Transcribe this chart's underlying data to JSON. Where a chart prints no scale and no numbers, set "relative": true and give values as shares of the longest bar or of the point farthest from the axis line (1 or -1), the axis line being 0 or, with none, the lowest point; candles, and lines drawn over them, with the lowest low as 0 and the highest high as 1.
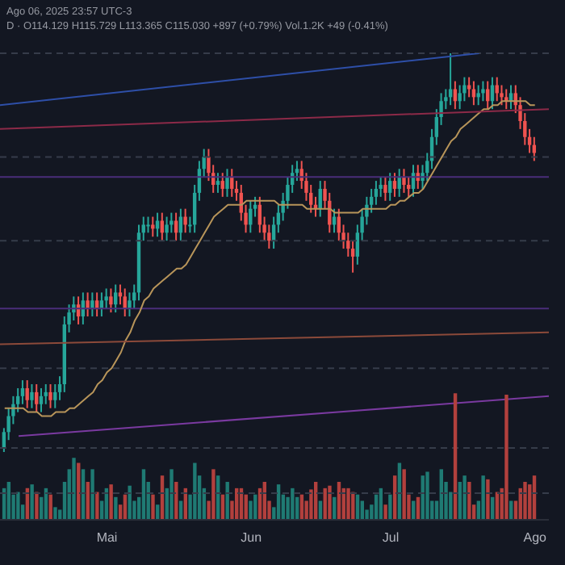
{
  "chart_data": [
    {
      "type": "candlestick",
      "relative": true,
      "tick_labels": false,
      "annotations": [
        "Ago 06, 2025 23:57 UTC-3",
        "D · O114.129 H115.729 L113.365 C115.030 +897 (+0.79%) Vol.1.2K +49 (-0.41%)"
      ],
      "xlim": [
        "2025-04-08",
        "2025-08-04"
      ],
      "x": [
        "2025-04-09",
        "2025-04-10",
        "2025-04-11",
        "2025-04-12",
        "2025-04-13",
        "2025-04-14",
        "2025-04-15",
        "2025-04-16",
        "2025-04-17",
        "2025-04-18",
        "2025-04-19",
        "2025-04-20",
        "2025-04-21",
        "2025-04-22",
        "2025-04-23",
        "2025-04-24",
        "2025-04-25",
        "2025-04-26",
        "2025-04-27",
        "2025-04-28",
        "2025-04-29",
        "2025-04-30",
        "2025-05-01",
        "2025-05-02",
        "2025-05-03",
        "2025-05-04",
        "2025-05-05",
        "2025-05-06",
        "2025-05-07",
        "2025-05-08",
        "2025-05-09",
        "2025-05-10",
        "2025-05-11",
        "2025-05-12",
        "2025-05-13",
        "2025-05-14",
        "2025-05-15",
        "2025-05-16",
        "2025-05-17",
        "2025-05-18",
        "2025-05-19",
        "2025-05-20",
        "2025-05-21",
        "2025-05-22",
        "2025-05-23",
        "2025-05-24",
        "2025-05-25",
        "2025-05-26",
        "2025-05-27",
        "2025-05-28",
        "2025-05-29",
        "2025-05-30",
        "2025-05-31",
        "2025-06-01",
        "2025-06-02",
        "2025-06-03",
        "2025-06-04",
        "2025-06-05",
        "2025-06-06",
        "2025-06-07",
        "2025-06-08",
        "2025-06-09",
        "2025-06-10",
        "2025-06-11",
        "2025-06-12",
        "2025-06-13",
        "2025-06-14",
        "2025-06-15",
        "2025-06-16",
        "2025-06-17",
        "2025-06-18",
        "2025-06-19",
        "2025-06-20",
        "2025-06-21",
        "2025-06-22",
        "2025-06-23",
        "2025-06-24",
        "2025-06-25",
        "2025-06-26",
        "2025-06-27",
        "2025-06-28",
        "2025-06-29",
        "2025-06-30",
        "2025-07-01",
        "2025-07-02",
        "2025-07-03",
        "2025-07-04",
        "2025-07-05",
        "2025-07-06",
        "2025-07-07",
        "2025-07-08",
        "2025-07-09",
        "2025-07-10",
        "2025-07-11",
        "2025-07-12",
        "2025-07-13",
        "2025-07-14",
        "2025-07-15",
        "2025-07-16",
        "2025-07-17",
        "2025-07-18",
        "2025-07-19",
        "2025-07-20",
        "2025-07-21",
        "2025-07-22",
        "2025-07-23",
        "2025-07-24",
        "2025-07-25",
        "2025-07-26",
        "2025-07-27",
        "2025-07-28",
        "2025-07-29",
        "2025-07-30",
        "2025-07-31",
        "2025-08-01"
      ],
      "ohlc": [
        [
          0.01,
          0.06,
          0.0,
          0.05
        ],
        [
          0.05,
          0.11,
          0.03,
          0.09
        ],
        [
          0.09,
          0.14,
          0.07,
          0.12
        ],
        [
          0.12,
          0.16,
          0.1,
          0.14
        ],
        [
          0.14,
          0.18,
          0.12,
          0.16
        ],
        [
          0.16,
          0.18,
          0.11,
          0.13
        ],
        [
          0.13,
          0.17,
          0.11,
          0.15
        ],
        [
          0.15,
          0.17,
          0.1,
          0.12
        ],
        [
          0.12,
          0.16,
          0.1,
          0.14
        ],
        [
          0.14,
          0.17,
          0.12,
          0.15
        ],
        [
          0.15,
          0.17,
          0.11,
          0.13
        ],
        [
          0.13,
          0.17,
          0.11,
          0.15
        ],
        [
          0.15,
          0.19,
          0.13,
          0.17
        ],
        [
          0.17,
          0.34,
          0.15,
          0.32
        ],
        [
          0.32,
          0.37,
          0.3,
          0.35
        ],
        [
          0.35,
          0.39,
          0.33,
          0.37
        ],
        [
          0.37,
          0.39,
          0.32,
          0.34
        ],
        [
          0.34,
          0.4,
          0.32,
          0.38
        ],
        [
          0.38,
          0.4,
          0.34,
          0.36
        ],
        [
          0.36,
          0.4,
          0.34,
          0.38
        ],
        [
          0.38,
          0.4,
          0.34,
          0.36
        ],
        [
          0.36,
          0.4,
          0.34,
          0.38
        ],
        [
          0.38,
          0.41,
          0.36,
          0.39
        ],
        [
          0.39,
          0.41,
          0.35,
          0.37
        ],
        [
          0.37,
          0.42,
          0.35,
          0.4
        ],
        [
          0.4,
          0.42,
          0.37,
          0.39
        ],
        [
          0.39,
          0.41,
          0.34,
          0.36
        ],
        [
          0.36,
          0.4,
          0.34,
          0.38
        ],
        [
          0.38,
          0.42,
          0.36,
          0.4
        ],
        [
          0.4,
          0.57,
          0.38,
          0.55
        ],
        [
          0.55,
          0.59,
          0.53,
          0.57
        ],
        [
          0.57,
          0.59,
          0.55,
          0.57
        ],
        [
          0.57,
          0.59,
          0.54,
          0.56
        ],
        [
          0.56,
          0.6,
          0.54,
          0.58
        ],
        [
          0.58,
          0.6,
          0.53,
          0.55
        ],
        [
          0.55,
          0.59,
          0.53,
          0.57
        ],
        [
          0.57,
          0.6,
          0.55,
          0.58
        ],
        [
          0.58,
          0.6,
          0.53,
          0.55
        ],
        [
          0.55,
          0.61,
          0.53,
          0.59
        ],
        [
          0.59,
          0.61,
          0.55,
          0.57
        ],
        [
          0.57,
          0.59,
          0.55,
          0.57
        ],
        [
          0.57,
          0.67,
          0.55,
          0.65
        ],
        [
          0.65,
          0.73,
          0.63,
          0.71
        ],
        [
          0.71,
          0.76,
          0.69,
          0.74
        ],
        [
          0.74,
          0.76,
          0.68,
          0.7
        ],
        [
          0.7,
          0.72,
          0.65,
          0.67
        ],
        [
          0.67,
          0.7,
          0.65,
          0.68
        ],
        [
          0.68,
          0.7,
          0.64,
          0.66
        ],
        [
          0.66,
          0.71,
          0.64,
          0.69
        ],
        [
          0.69,
          0.71,
          0.64,
          0.66
        ],
        [
          0.66,
          0.68,
          0.63,
          0.65
        ],
        [
          0.65,
          0.67,
          0.58,
          0.6
        ],
        [
          0.6,
          0.62,
          0.55,
          0.57
        ],
        [
          0.57,
          0.63,
          0.55,
          0.61
        ],
        [
          0.61,
          0.64,
          0.59,
          0.62
        ],
        [
          0.62,
          0.64,
          0.55,
          0.57
        ],
        [
          0.57,
          0.59,
          0.53,
          0.55
        ],
        [
          0.55,
          0.57,
          0.51,
          0.53
        ],
        [
          0.53,
          0.59,
          0.51,
          0.57
        ],
        [
          0.57,
          0.62,
          0.55,
          0.6
        ],
        [
          0.6,
          0.65,
          0.58,
          0.63
        ],
        [
          0.63,
          0.69,
          0.61,
          0.67
        ],
        [
          0.67,
          0.72,
          0.65,
          0.7
        ],
        [
          0.7,
          0.73,
          0.68,
          0.71
        ],
        [
          0.71,
          0.73,
          0.66,
          0.68
        ],
        [
          0.68,
          0.7,
          0.63,
          0.65
        ],
        [
          0.65,
          0.67,
          0.6,
          0.62
        ],
        [
          0.62,
          0.64,
          0.59,
          0.61
        ],
        [
          0.61,
          0.68,
          0.59,
          0.66
        ],
        [
          0.66,
          0.68,
          0.61,
          0.63
        ],
        [
          0.63,
          0.65,
          0.55,
          0.57
        ],
        [
          0.57,
          0.61,
          0.55,
          0.59
        ],
        [
          0.59,
          0.61,
          0.53,
          0.55
        ],
        [
          0.55,
          0.57,
          0.51,
          0.53
        ],
        [
          0.53,
          0.55,
          0.49,
          0.51
        ],
        [
          0.51,
          0.53,
          0.45,
          0.49
        ],
        [
          0.49,
          0.57,
          0.47,
          0.55
        ],
        [
          0.55,
          0.61,
          0.53,
          0.59
        ],
        [
          0.59,
          0.64,
          0.57,
          0.62
        ],
        [
          0.62,
          0.66,
          0.6,
          0.64
        ],
        [
          0.64,
          0.68,
          0.62,
          0.66
        ],
        [
          0.66,
          0.69,
          0.64,
          0.67
        ],
        [
          0.67,
          0.69,
          0.63,
          0.65
        ],
        [
          0.65,
          0.7,
          0.63,
          0.68
        ],
        [
          0.68,
          0.7,
          0.64,
          0.66
        ],
        [
          0.66,
          0.71,
          0.64,
          0.69
        ],
        [
          0.69,
          0.71,
          0.65,
          0.67
        ],
        [
          0.67,
          0.69,
          0.64,
          0.66
        ],
        [
          0.66,
          0.72,
          0.64,
          0.7
        ],
        [
          0.7,
          0.72,
          0.66,
          0.68
        ],
        [
          0.68,
          0.72,
          0.66,
          0.7
        ],
        [
          0.7,
          0.75,
          0.68,
          0.73
        ],
        [
          0.73,
          0.81,
          0.71,
          0.79
        ],
        [
          0.79,
          0.86,
          0.77,
          0.84
        ],
        [
          0.84,
          0.9,
          0.82,
          0.88
        ],
        [
          0.88,
          0.91,
          0.86,
          0.89
        ],
        [
          0.89,
          1.0,
          0.87,
          0.91
        ],
        [
          0.91,
          0.93,
          0.86,
          0.88
        ],
        [
          0.88,
          0.92,
          0.86,
          0.9
        ],
        [
          0.9,
          0.94,
          0.88,
          0.92
        ],
        [
          0.92,
          0.94,
          0.89,
          0.91
        ],
        [
          0.91,
          0.93,
          0.87,
          0.89
        ],
        [
          0.89,
          0.92,
          0.87,
          0.9
        ],
        [
          0.9,
          0.93,
          0.88,
          0.91
        ],
        [
          0.91,
          0.93,
          0.86,
          0.88
        ],
        [
          0.88,
          0.94,
          0.86,
          0.92
        ],
        [
          0.92,
          0.94,
          0.88,
          0.9
        ],
        [
          0.9,
          0.92,
          0.87,
          0.89
        ],
        [
          0.89,
          0.91,
          0.86,
          0.88
        ],
        [
          0.88,
          0.92,
          0.86,
          0.9
        ],
        [
          0.9,
          0.92,
          0.85,
          0.87
        ],
        [
          0.87,
          0.89,
          0.81,
          0.83
        ],
        [
          0.83,
          0.85,
          0.77,
          0.79
        ],
        [
          0.79,
          0.81,
          0.75,
          0.77
        ],
        [
          0.77,
          0.79,
          0.73,
          0.75
        ]
      ],
      "colors": [
        "#26a69a",
        "#26a69a",
        "#26a69a",
        "#26a69a",
        "#26a69a",
        "#ef5350",
        "#26a69a",
        "#ef5350",
        "#26a69a",
        "#26a69a",
        "#ef5350",
        "#26a69a",
        "#26a69a",
        "#26a69a",
        "#26a69a",
        "#26a69a",
        "#ef5350",
        "#26a69a",
        "#ef5350",
        "#26a69a",
        "#ef5350",
        "#26a69a",
        "#26a69a",
        "#ef5350",
        "#26a69a",
        "#ef5350",
        "#ef5350",
        "#26a69a",
        "#26a69a",
        "#26a69a",
        "#26a69a",
        "#26a69a",
        "#ef5350",
        "#26a69a",
        "#ef5350",
        "#26a69a",
        "#26a69a",
        "#ef5350",
        "#26a69a",
        "#ef5350",
        "#26a69a",
        "#26a69a",
        "#26a69a",
        "#26a69a",
        "#ef5350",
        "#ef5350",
        "#26a69a",
        "#ef5350",
        "#26a69a",
        "#ef5350",
        "#ef5350",
        "#ef5350",
        "#ef5350",
        "#26a69a",
        "#26a69a",
        "#ef5350",
        "#ef5350",
        "#ef5350",
        "#26a69a",
        "#26a69a",
        "#26a69a",
        "#26a69a",
        "#26a69a",
        "#26a69a",
        "#ef5350",
        "#ef5350",
        "#ef5350",
        "#ef5350",
        "#26a69a",
        "#ef5350",
        "#ef5350",
        "#26a69a",
        "#ef5350",
        "#ef5350",
        "#ef5350",
        "#ef5350",
        "#26a69a",
        "#26a69a",
        "#26a69a",
        "#26a69a",
        "#26a69a",
        "#26a69a",
        "#ef5350",
        "#26a69a",
        "#ef5350",
        "#26a69a",
        "#ef5350",
        "#ef5350",
        "#26a69a",
        "#ef5350",
        "#26a69a",
        "#26a69a",
        "#26a69a",
        "#26a69a",
        "#26a69a",
        "#26a69a",
        "#26a69a",
        "#ef5350",
        "#26a69a",
        "#26a69a",
        "#ef5350",
        "#ef5350",
        "#26a69a",
        "#26a69a",
        "#ef5350",
        "#26a69a",
        "#ef5350",
        "#ef5350",
        "#ef5350",
        "#26a69a",
        "#ef5350",
        "#ef5350",
        "#ef5350",
        "#ef5350",
        "#ef5350"
      ],
      "series": [
        {
          "type": "line",
          "color": "#b8955a",
          "values": [
            0.11,
            0.11,
            0.11,
            0.11,
            0.11,
            0.1,
            0.1,
            0.1,
            0.09,
            0.09,
            0.09,
            0.1,
            0.1,
            0.1,
            0.11,
            0.11,
            0.12,
            0.13,
            0.14,
            0.15,
            0.17,
            0.18,
            0.2,
            0.21,
            0.23,
            0.25,
            0.28,
            0.3,
            0.33,
            0.35,
            0.38,
            0.39,
            0.41,
            0.42,
            0.43,
            0.44,
            0.45,
            0.46,
            0.46,
            0.47,
            0.49,
            0.51,
            0.53,
            0.55,
            0.57,
            0.59,
            0.6,
            0.61,
            0.62,
            0.62,
            0.62,
            0.62,
            0.63,
            0.63,
            0.63,
            0.63,
            0.63,
            0.63,
            0.63,
            0.62,
            0.62,
            0.62,
            0.62,
            0.62,
            0.62,
            0.61,
            0.61,
            0.61,
            0.61,
            0.61,
            0.61,
            0.6,
            0.6,
            0.6,
            0.6,
            0.6,
            0.6,
            0.61,
            0.61,
            0.61,
            0.61,
            0.61,
            0.61,
            0.62,
            0.62,
            0.63,
            0.63,
            0.64,
            0.65,
            0.65,
            0.66,
            0.68,
            0.7,
            0.72,
            0.74,
            0.76,
            0.78,
            0.79,
            0.81,
            0.82,
            0.83,
            0.84,
            0.85,
            0.86,
            0.86,
            0.87,
            0.87,
            0.88,
            0.88,
            0.88,
            0.88,
            0.88,
            0.88,
            0.87,
            0.87
          ]
        },
        {
          "type": "line",
          "color": "#2e4fa8",
          "x": [
            "2025-04-08",
            "2025-07-20"
          ],
          "values": [
            0.87,
            1.0
          ]
        },
        {
          "type": "line",
          "color": "#8c2a48",
          "x": [
            "2025-04-08",
            "2025-08-04"
          ],
          "values": [
            0.81,
            0.86
          ]
        },
        {
          "type": "line",
          "color": "#8c4a3a",
          "x": [
            "2025-04-08",
            "2025-08-04"
          ],
          "values": [
            0.27,
            0.3
          ]
        },
        {
          "type": "line",
          "color": "#7a3aa0",
          "x": [
            "2025-04-12",
            "2025-08-04"
          ],
          "values": [
            0.04,
            0.14
          ]
        }
      ],
      "ref_lines": [
        {
          "axis": "y",
          "value": 0.69,
          "color": "#4a2e7a"
        },
        {
          "axis": "y",
          "value": 0.36,
          "color": "#4a2e7a"
        },
        {
          "axis": "y",
          "value": 1.0,
          "color": "#363c4a",
          "line_style": "dashed"
        },
        {
          "axis": "y",
          "value": 0.74,
          "color": "#363c4a",
          "line_style": "dashed"
        },
        {
          "axis": "y",
          "value": 0.53,
          "color": "#363c4a",
          "line_style": "dashed"
        },
        {
          "axis": "y",
          "value": 0.21,
          "color": "#363c4a",
          "line_style": "dashed"
        },
        {
          "axis": "y",
          "value": 0.01,
          "color": "#363c4a",
          "line_style": "dashed"
        }
      ]
    },
    {
      "type": "bar",
      "relative": true,
      "xlim": [
        "2025-04-08",
        "2025-08-04"
      ],
      "xticks": [
        {
          "value": "2025-05-01",
          "label": "Mai"
        },
        {
          "value": "2025-06-01",
          "label": "Jun"
        },
        {
          "value": "2025-07-01",
          "label": "Jul"
        },
        {
          "value": "2025-08-01",
          "label": "Ago"
        }
      ],
      "x": [
        "2025-04-09",
        "2025-04-10",
        "2025-04-11",
        "2025-04-12",
        "2025-04-13",
        "2025-04-14",
        "2025-04-15",
        "2025-04-16",
        "2025-04-17",
        "2025-04-18",
        "2025-04-19",
        "2025-04-20",
        "2025-04-21",
        "2025-04-22",
        "2025-04-23",
        "2025-04-24",
        "2025-04-25",
        "2025-04-26",
        "2025-04-27",
        "2025-04-28",
        "2025-04-29",
        "2025-04-30",
        "2025-05-01",
        "2025-05-02",
        "2025-05-03",
        "2025-05-04",
        "2025-05-05",
        "2025-05-06",
        "2025-05-07",
        "2025-05-08",
        "2025-05-09",
        "2025-05-10",
        "2025-05-11",
        "2025-05-12",
        "2025-05-13",
        "2025-05-14",
        "2025-05-15",
        "2025-05-16",
        "2025-05-17",
        "2025-05-18",
        "2025-05-19",
        "2025-05-20",
        "2025-05-21",
        "2025-05-22",
        "2025-05-23",
        "2025-05-24",
        "2025-05-25",
        "2025-05-26",
        "2025-05-27",
        "2025-05-28",
        "2025-05-29",
        "2025-05-30",
        "2025-05-31",
        "2025-06-01",
        "2025-06-02",
        "2025-06-03",
        "2025-06-04",
        "2025-06-05",
        "2025-06-06",
        "2025-06-07",
        "2025-06-08",
        "2025-06-09",
        "2025-06-10",
        "2025-06-11",
        "2025-06-12",
        "2025-06-13",
        "2025-06-14",
        "2025-06-15",
        "2025-06-16",
        "2025-06-17",
        "2025-06-18",
        "2025-06-19",
        "2025-06-20",
        "2025-06-21",
        "2025-06-22",
        "2025-06-23",
        "2025-06-24",
        "2025-06-25",
        "2025-06-26",
        "2025-06-27",
        "2025-06-28",
        "2025-06-29",
        "2025-06-30",
        "2025-07-01",
        "2025-07-02",
        "2025-07-03",
        "2025-07-04",
        "2025-07-05",
        "2025-07-06",
        "2025-07-07",
        "2025-07-08",
        "2025-07-09",
        "2025-07-10",
        "2025-07-11",
        "2025-07-12",
        "2025-07-13",
        "2025-07-14",
        "2025-07-15",
        "2025-07-16",
        "2025-07-17",
        "2025-07-18",
        "2025-07-19",
        "2025-07-20",
        "2025-07-21",
        "2025-07-22",
        "2025-07-23",
        "2025-07-24",
        "2025-07-25",
        "2025-07-26",
        "2025-07-27",
        "2025-07-28",
        "2025-07-29",
        "2025-07-30",
        "2025-07-31",
        "2025-08-01"
      ],
      "values": [
        0.25,
        0.3,
        0.2,
        0.22,
        0.12,
        0.25,
        0.28,
        0.22,
        0.18,
        0.25,
        0.2,
        0.1,
        0.08,
        0.3,
        0.4,
        0.49,
        0.45,
        0.4,
        0.3,
        0.4,
        0.22,
        0.15,
        0.25,
        0.28,
        0.18,
        0.12,
        0.2,
        0.27,
        0.15,
        0.18,
        0.4,
        0.3,
        0.2,
        0.12,
        0.35,
        0.25,
        0.4,
        0.3,
        0.15,
        0.25,
        0.2,
        0.45,
        0.35,
        0.25,
        0.15,
        0.4,
        0.35,
        0.2,
        0.3,
        0.15,
        0.25,
        0.25,
        0.2,
        0.15,
        0.2,
        0.25,
        0.3,
        0.15,
        0.1,
        0.28,
        0.2,
        0.18,
        0.25,
        0.18,
        0.2,
        0.15,
        0.24,
        0.3,
        0.15,
        0.25,
        0.27,
        0.18,
        0.3,
        0.25,
        0.25,
        0.22,
        0.2,
        0.15,
        0.08,
        0.12,
        0.2,
        0.25,
        0.12,
        0.2,
        0.35,
        0.45,
        0.4,
        0.2,
        0.15,
        0.18,
        0.35,
        0.38,
        0.15,
        0.15,
        0.4,
        0.3,
        0.22,
        1.0,
        0.3,
        0.35,
        0.3,
        0.12,
        0.15,
        0.35,
        0.32,
        0.18,
        0.22,
        0.25,
        0.99,
        0.15,
        0.15,
        0.25,
        0.3,
        0.28,
        0.35
      ],
      "colors": [
        "#1f7a73",
        "#1f7a73",
        "#1f7a73",
        "#1f7a73",
        "#1f7a73",
        "#b2403d",
        "#1f7a73",
        "#b2403d",
        "#1f7a73",
        "#1f7a73",
        "#b2403d",
        "#1f7a73",
        "#1f7a73",
        "#1f7a73",
        "#1f7a73",
        "#1f7a73",
        "#b2403d",
        "#1f7a73",
        "#b2403d",
        "#1f7a73",
        "#b2403d",
        "#1f7a73",
        "#1f7a73",
        "#b2403d",
        "#1f7a73",
        "#b2403d",
        "#b2403d",
        "#1f7a73",
        "#1f7a73",
        "#1f7a73",
        "#1f7a73",
        "#1f7a73",
        "#b2403d",
        "#1f7a73",
        "#b2403d",
        "#1f7a73",
        "#1f7a73",
        "#b2403d",
        "#1f7a73",
        "#b2403d",
        "#1f7a73",
        "#1f7a73",
        "#1f7a73",
        "#1f7a73",
        "#b2403d",
        "#b2403d",
        "#1f7a73",
        "#b2403d",
        "#1f7a73",
        "#b2403d",
        "#b2403d",
        "#b2403d",
        "#b2403d",
        "#1f7a73",
        "#1f7a73",
        "#b2403d",
        "#b2403d",
        "#b2403d",
        "#1f7a73",
        "#1f7a73",
        "#1f7a73",
        "#1f7a73",
        "#1f7a73",
        "#1f7a73",
        "#b2403d",
        "#b2403d",
        "#b2403d",
        "#b2403d",
        "#1f7a73",
        "#b2403d",
        "#b2403d",
        "#1f7a73",
        "#b2403d",
        "#b2403d",
        "#b2403d",
        "#b2403d",
        "#1f7a73",
        "#1f7a73",
        "#1f7a73",
        "#1f7a73",
        "#1f7a73",
        "#1f7a73",
        "#b2403d",
        "#1f7a73",
        "#b2403d",
        "#1f7a73",
        "#b2403d",
        "#b2403d",
        "#1f7a73",
        "#b2403d",
        "#1f7a73",
        "#1f7a73",
        "#1f7a73",
        "#1f7a73",
        "#1f7a73",
        "#1f7a73",
        "#1f7a73",
        "#b2403d",
        "#1f7a73",
        "#1f7a73",
        "#b2403d",
        "#b2403d",
        "#1f7a73",
        "#1f7a73",
        "#b2403d",
        "#1f7a73",
        "#b2403d",
        "#b2403d",
        "#b2403d",
        "#1f7a73",
        "#b2403d",
        "#b2403d",
        "#b2403d",
        "#b2403d",
        "#b2403d"
      ],
      "ref_lines": [
        {
          "axis": "y",
          "value": 0.21,
          "color": "#363c4a",
          "line_style": "dashed"
        }
      ]
    }
  ]
}
